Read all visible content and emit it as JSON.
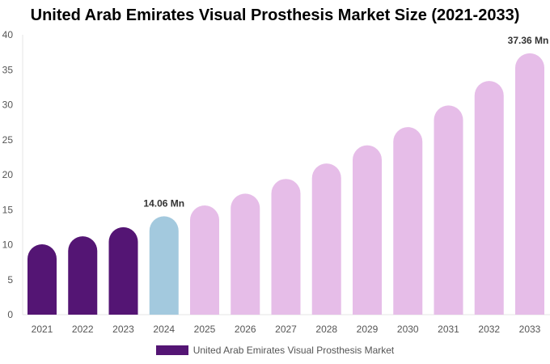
{
  "chart_data": {
    "type": "bar",
    "title": "United Arab Emirates Visual Prosthesis Market Size (2021-2033)",
    "categories": [
      "2021",
      "2022",
      "2023",
      "2024",
      "2025",
      "2026",
      "2027",
      "2028",
      "2029",
      "2030",
      "2031",
      "2032",
      "2033"
    ],
    "series": [
      {
        "name": "United Arab Emirates Visual Prosthesis Market",
        "values": [
          10.06,
          11.2,
          12.5,
          14.06,
          15.6,
          17.3,
          19.4,
          21.6,
          24.2,
          26.8,
          29.9,
          33.4,
          37.36
        ]
      }
    ],
    "data_labels": {
      "3": "14.06 Mn",
      "12": "37.36 Mn"
    },
    "ylim": [
      0,
      40
    ],
    "yticks": [
      0,
      5,
      10,
      15,
      20,
      25,
      30,
      35,
      40
    ],
    "xlabel": "",
    "ylabel": "",
    "grid": false,
    "legend_position": "bottom",
    "colors": {
      "historical": "#541574",
      "base_year": "#a3c9de",
      "forecast": "#e6bde8",
      "legend": "#541574"
    }
  }
}
